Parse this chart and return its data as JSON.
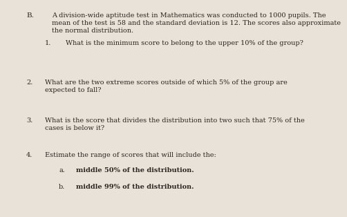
{
  "background_color": "#e8e2d8",
  "text_color": "#2a2520",
  "section_label": "B.",
  "intro_line1": "A division-wide aptitude test in Mathematics was conducted to 1000 pupils. The",
  "intro_line2": "mean of the test is 58 and the standard deviation is 12. The scores also approximate",
  "intro_line3": "the normal distribution.",
  "q1_num": "1.",
  "q1_text": "What is the minimum score to belong to the upper 10% of the group?",
  "q2_num": "2.",
  "q2_line1": "What are the two extreme scores outside of which 5% of the group are",
  "q2_line2": "expected to fall?",
  "q3_num": "3.",
  "q3_line1": "What is the score that divides the distribution into two such that 75% of the",
  "q3_line2": "cases is below it?",
  "q4_num": "4.",
  "q4_text": "Estimate the range of scores that will include the:",
  "q4a_label": "a.",
  "q4a_text": "middle 50% of the distribution.",
  "q4b_label": "b.",
  "q4b_text": "middle 99% of the distribution.",
  "fs": 7.0,
  "fs_bold": 7.5
}
